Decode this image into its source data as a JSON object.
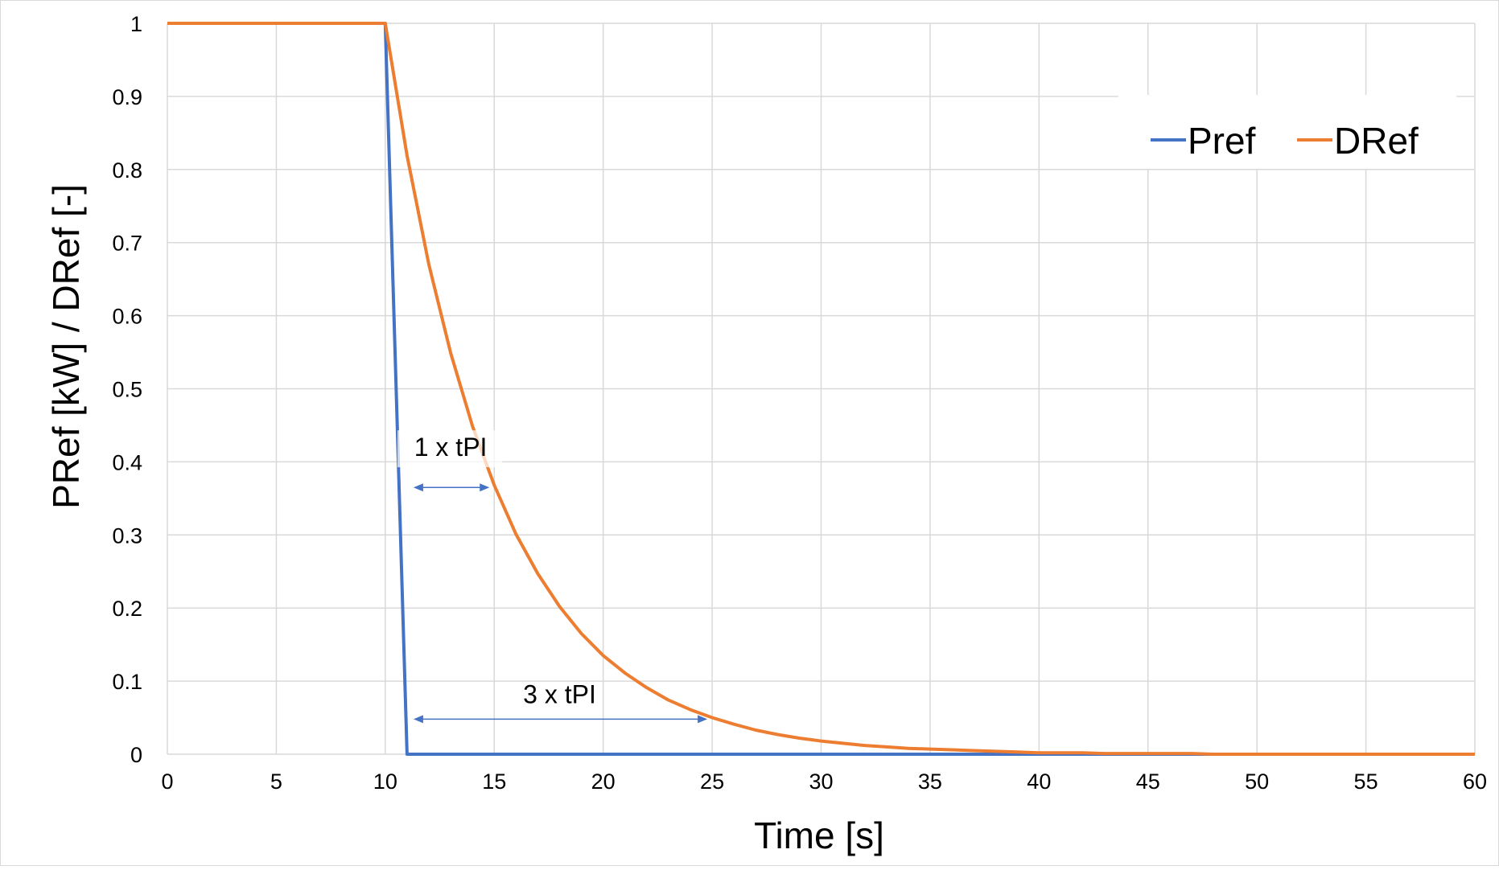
{
  "chart_data": {
    "type": "line",
    "title": "",
    "xlabel": "Time [s]",
    "ylabel": "PRef [kW] / DRef [-]",
    "xlim": [
      0,
      60
    ],
    "ylim": [
      0,
      1
    ],
    "x_ticks": [
      0,
      5,
      10,
      15,
      20,
      25,
      30,
      35,
      40,
      45,
      50,
      55,
      60
    ],
    "y_ticks": [
      0,
      0.1,
      0.2,
      0.3,
      0.4,
      0.5,
      0.6,
      0.7,
      0.8,
      0.9,
      1
    ],
    "grid": true,
    "legend_position": "top-right",
    "series": [
      {
        "name": "Pref",
        "color": "#4472C4",
        "x": [
          0,
          10,
          11,
          60
        ],
        "y": [
          1,
          1,
          0,
          0
        ]
      },
      {
        "name": "DRef",
        "color": "#ED7D31",
        "x": [
          0,
          10,
          11,
          12,
          13,
          14,
          15,
          16,
          17,
          18,
          19,
          20,
          21,
          22,
          23,
          24,
          25,
          26,
          27,
          28,
          29,
          30,
          31,
          32,
          33,
          34,
          35,
          36,
          37,
          38,
          39,
          40,
          41,
          42,
          43,
          44,
          45,
          46,
          47,
          48,
          49,
          50,
          51,
          52,
          53,
          54,
          55,
          56,
          57,
          58,
          59,
          60
        ],
        "y": [
          1,
          1,
          0.819,
          0.67,
          0.549,
          0.449,
          0.368,
          0.301,
          0.247,
          0.202,
          0.165,
          0.135,
          0.111,
          0.091,
          0.074,
          0.061,
          0.05,
          0.041,
          0.033,
          0.027,
          0.022,
          0.018,
          0.015,
          0.012,
          0.01,
          0.008,
          0.007,
          0.006,
          0.005,
          0.004,
          0.003,
          0.002,
          0.002,
          0.002,
          0.001,
          0.001,
          0.001,
          0.001,
          0.001,
          0.0,
          0.0,
          0.0,
          0.0,
          0.0,
          0.0,
          0.0,
          0.0,
          0.0,
          0.0,
          0.0,
          0.0,
          0.0
        ]
      }
    ],
    "annotations": [
      {
        "text": "1 x tPI",
        "x_start": 11,
        "x_end": 15,
        "arrow_y": 0.365,
        "label_y": 0.408
      },
      {
        "text": "3 x tPI",
        "x_start": 11,
        "x_end": 25,
        "arrow_y": 0.048,
        "label_y": 0.07
      }
    ]
  }
}
